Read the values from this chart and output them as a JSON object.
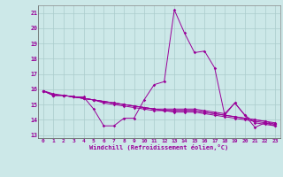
{
  "xlabel": "Windchill (Refroidissement éolien,°C)",
  "bg_color": "#cce8e8",
  "grid_color": "#aacccc",
  "line_color": "#990099",
  "xlim": [
    -0.5,
    23.5
  ],
  "ylim": [
    12.8,
    21.5
  ],
  "yticks": [
    13,
    14,
    15,
    16,
    17,
    18,
    19,
    20,
    21
  ],
  "xticks": [
    0,
    1,
    2,
    3,
    4,
    5,
    6,
    7,
    8,
    9,
    10,
    11,
    12,
    13,
    14,
    15,
    16,
    17,
    18,
    19,
    20,
    21,
    22,
    23
  ],
  "series": [
    [
      15.9,
      15.6,
      15.6,
      15.5,
      15.5,
      14.7,
      13.6,
      13.6,
      14.1,
      14.1,
      15.3,
      16.3,
      16.5,
      21.2,
      19.7,
      18.4,
      18.5,
      17.4,
      14.3,
      15.1,
      14.3,
      13.5,
      13.8,
      13.6
    ],
    [
      15.9,
      15.6,
      15.6,
      15.5,
      15.4,
      15.3,
      15.2,
      15.1,
      15.0,
      14.9,
      14.8,
      14.7,
      14.6,
      14.5,
      14.5,
      14.5,
      14.4,
      14.3,
      14.2,
      14.1,
      14.0,
      13.9,
      13.8,
      13.7
    ],
    [
      15.9,
      15.6,
      15.6,
      15.5,
      15.4,
      15.3,
      15.1,
      15.0,
      14.9,
      14.8,
      14.7,
      14.6,
      14.6,
      14.6,
      14.6,
      14.6,
      14.5,
      14.4,
      14.3,
      14.2,
      14.1,
      14.0,
      13.9,
      13.8
    ],
    [
      15.9,
      15.6,
      15.6,
      15.5,
      15.4,
      15.3,
      15.2,
      15.1,
      15.0,
      14.9,
      14.8,
      14.7,
      14.7,
      14.7,
      14.7,
      14.7,
      14.6,
      14.5,
      14.4,
      15.1,
      14.3,
      13.8,
      13.7,
      13.6
    ],
    [
      15.9,
      15.7,
      15.6,
      15.5,
      15.4,
      15.3,
      15.2,
      15.1,
      15.0,
      14.9,
      14.8,
      14.7,
      14.6,
      14.6,
      14.6,
      14.6,
      14.5,
      14.4,
      14.3,
      14.2,
      14.1,
      14.0,
      13.9,
      13.7
    ]
  ]
}
